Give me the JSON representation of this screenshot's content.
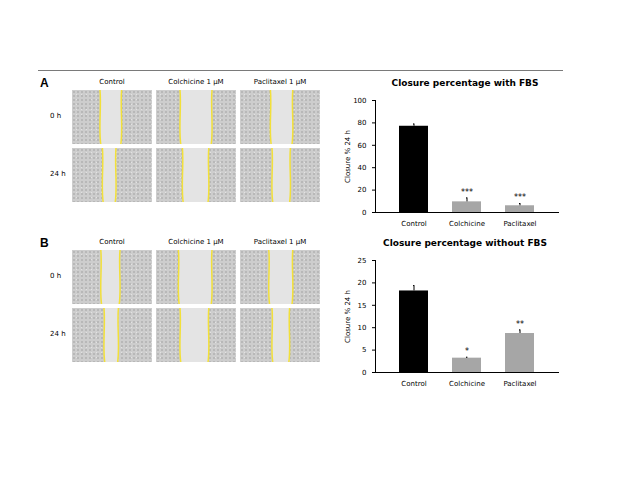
{
  "panels": [
    {
      "label": "A",
      "columns": [
        "Control",
        "Colchicine 1 μM",
        "Paclitaxel 1 μM"
      ],
      "rows": [
        "0 h",
        "24 h"
      ]
    },
    {
      "label": "B",
      "columns": [
        "Control",
        "Colchicine 1 μM",
        "Paclitaxel 1 μM"
      ],
      "rows": [
        "0 h",
        "24 h"
      ]
    }
  ],
  "chart_data": [
    {
      "type": "bar",
      "title": "Closure percentage with FBS",
      "y_label": "Closure % 24 h",
      "categories": [
        "Control",
        "Colchicine",
        "Paclitaxel"
      ],
      "values": [
        77,
        9.5,
        6
      ],
      "error": [
        2,
        3.5,
        2
      ],
      "significance": [
        null,
        "***",
        "***"
      ],
      "colors": [
        "#000000",
        "#a6a6a6",
        "#a6a6a6"
      ],
      "ylim": [
        0,
        100
      ],
      "yticks": [
        0,
        20,
        40,
        60,
        80,
        100
      ]
    },
    {
      "type": "bar",
      "title": "Closure percentage without FBS",
      "y_label": "Closure % 24 h",
      "categories": [
        "Control",
        "Colchicine",
        "Paclitaxel"
      ],
      "values": [
        18.2,
        3.2,
        8.7
      ],
      "error": [
        1.2,
        0.2,
        0.8
      ],
      "significance": [
        null,
        "*",
        "**"
      ],
      "colors": [
        "#000000",
        "#a6a6a6",
        "#a6a6a6"
      ],
      "ylim": [
        0,
        25
      ],
      "yticks": [
        0,
        5,
        10,
        15,
        20,
        25
      ]
    }
  ]
}
